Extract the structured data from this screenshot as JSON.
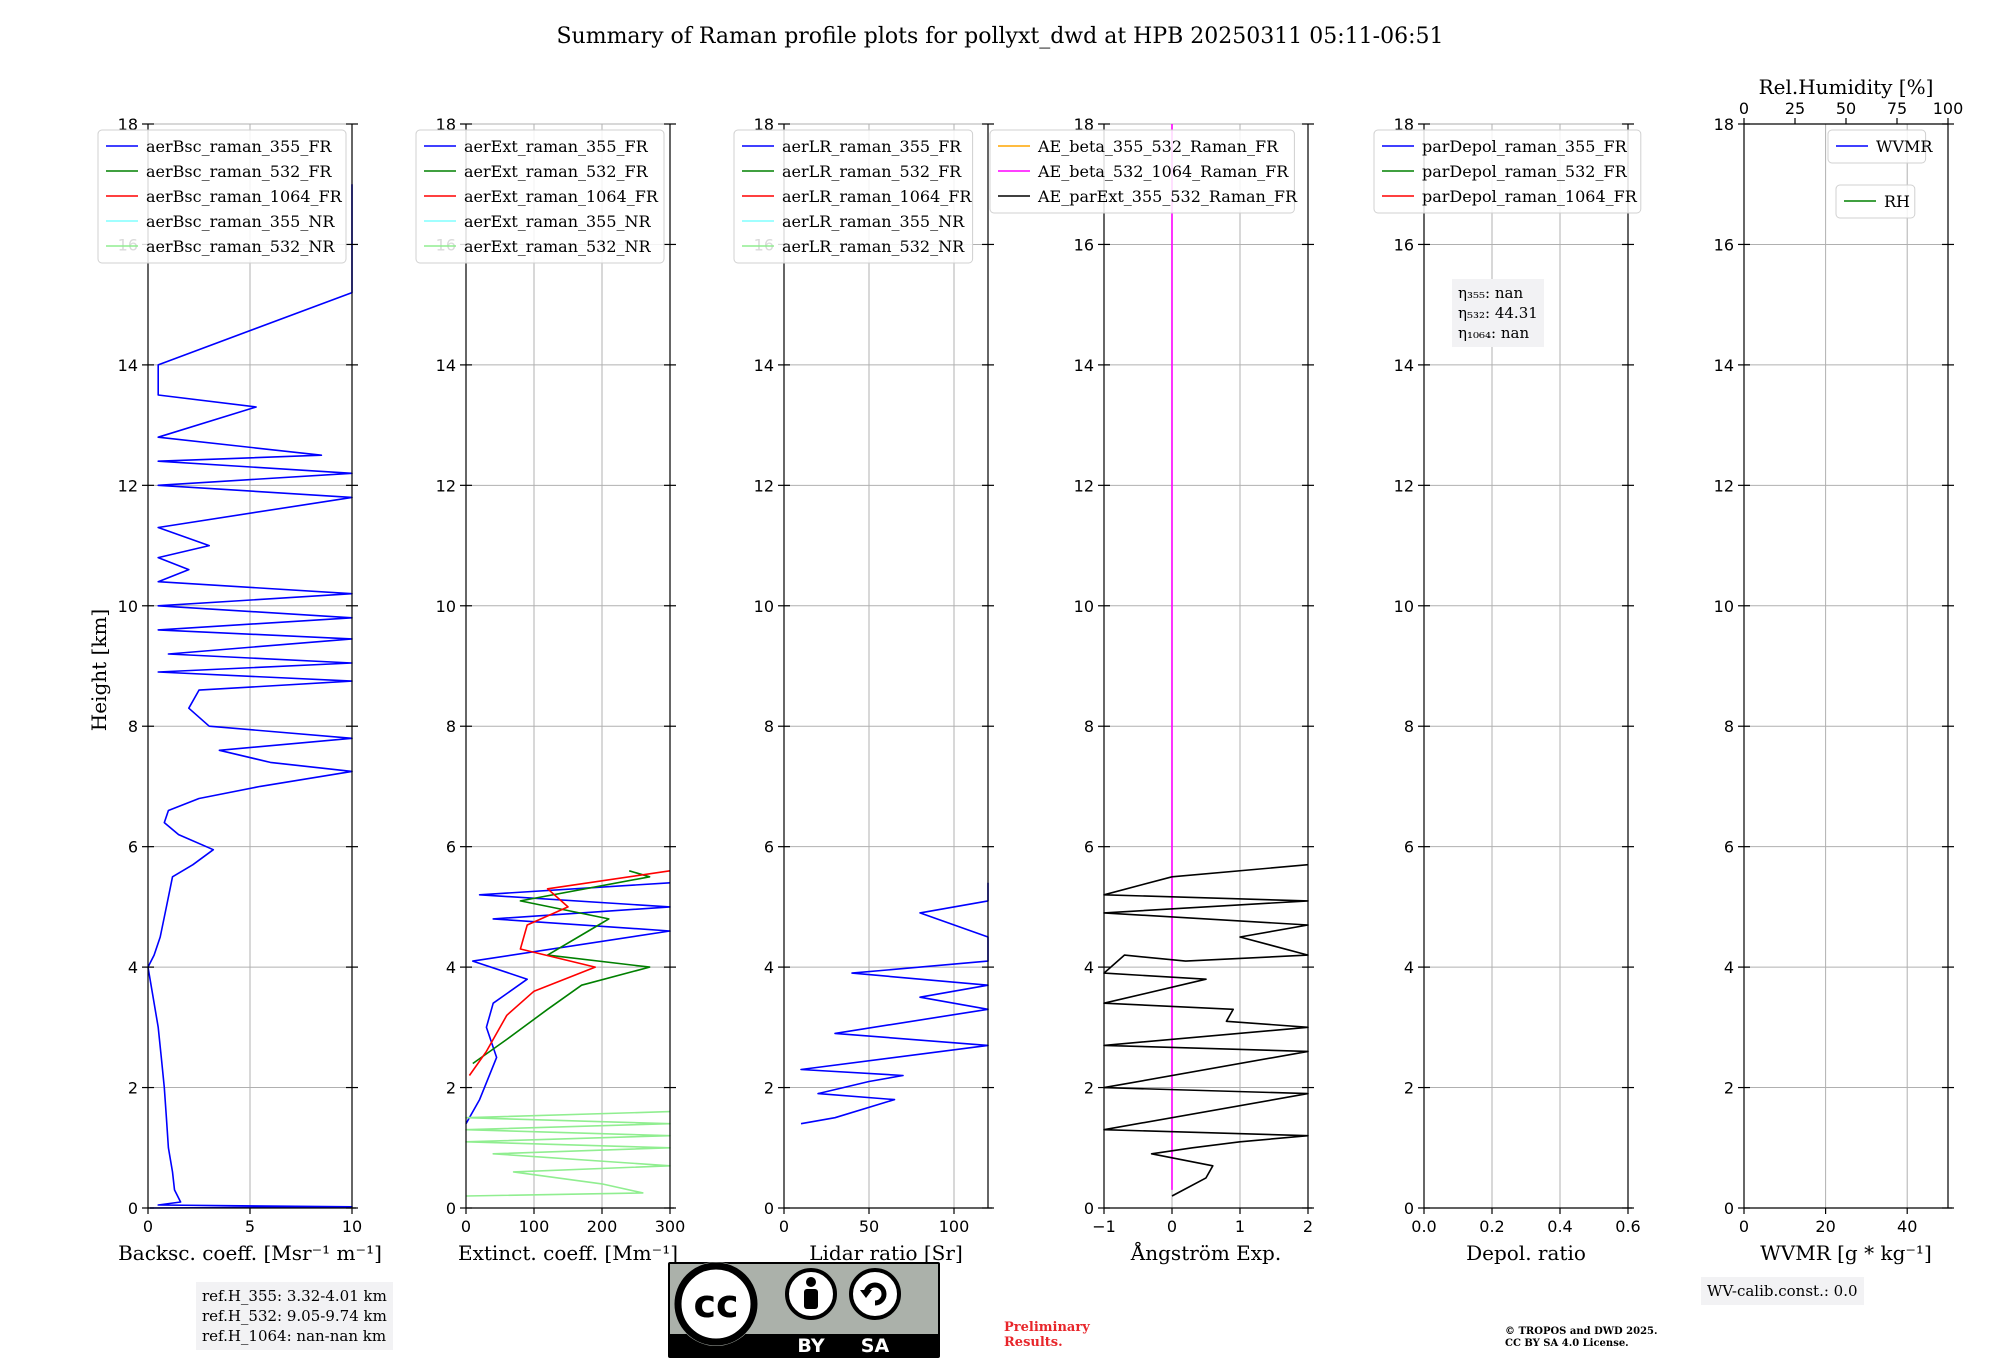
{
  "title": "Summary of Raman profile plots for pollyxt_dwd at HPB 20250311 05:11-06:51",
  "ylabel": "Height [km]",
  "y_ticks": [
    "0",
    "2",
    "4",
    "6",
    "8",
    "10",
    "12",
    "14",
    "16",
    "18"
  ],
  "ylim": [
    0,
    18
  ],
  "panels": [
    {
      "xlabel": "Backsc. coeff. [Msr⁻¹ m⁻¹]",
      "xlim": [
        0,
        10
      ],
      "x_ticks": [
        0,
        5,
        10
      ],
      "x_tick_labels": [
        "0",
        "5",
        "10"
      ],
      "legend": [
        {
          "label": "aerBsc_raman_355_FR",
          "color": "#0000ff"
        },
        {
          "label": "aerBsc_raman_532_FR",
          "color": "#008000"
        },
        {
          "label": "aerBsc_raman_1064_FR",
          "color": "#ff0000"
        },
        {
          "label": "aerBsc_raman_355_NR",
          "color": "#80ffff"
        },
        {
          "label": "aerBsc_raman_532_NR",
          "color": "#90ee90"
        }
      ]
    },
    {
      "xlabel": "Extinct. coeff. [Mm⁻¹]",
      "xlim": [
        0,
        300
      ],
      "x_ticks": [
        0,
        100,
        200,
        300
      ],
      "x_tick_labels": [
        "0",
        "100",
        "200",
        "300"
      ],
      "legend": [
        {
          "label": "aerExt_raman_355_FR",
          "color": "#0000ff"
        },
        {
          "label": "aerExt_raman_532_FR",
          "color": "#008000"
        },
        {
          "label": "aerExt_raman_1064_FR",
          "color": "#ff0000"
        },
        {
          "label": "aerExt_raman_355_NR",
          "color": "#80ffff"
        },
        {
          "label": "aerExt_raman_532_NR",
          "color": "#90ee90"
        }
      ]
    },
    {
      "xlabel": "Lidar ratio [Sr]",
      "xlim": [
        0,
        120
      ],
      "x_ticks": [
        0,
        50,
        100
      ],
      "x_tick_labels": [
        "0",
        "50",
        "100"
      ],
      "legend": [
        {
          "label": "aerLR_raman_355_FR",
          "color": "#0000ff"
        },
        {
          "label": "aerLR_raman_532_FR",
          "color": "#008000"
        },
        {
          "label": "aerLR_raman_1064_FR",
          "color": "#ff0000"
        },
        {
          "label": "aerLR_raman_355_NR",
          "color": "#80ffff"
        },
        {
          "label": "aerLR_raman_532_NR",
          "color": "#90ee90"
        }
      ]
    },
    {
      "xlabel": "Ångström Exp.",
      "xlim": [
        -1,
        2
      ],
      "x_ticks": [
        -1,
        0,
        1,
        2
      ],
      "x_tick_labels": [
        "−1",
        "0",
        "1",
        "2"
      ],
      "legend": [
        {
          "label": "AE_beta_355_532_Raman_FR",
          "color": "#ffa500"
        },
        {
          "label": "AE_beta_532_1064_Raman_FR",
          "color": "#ff00ff"
        },
        {
          "label": "AE_parExt_355_532_Raman_FR",
          "color": "#000000"
        }
      ]
    },
    {
      "xlabel": "Depol. ratio",
      "xlim": [
        0,
        0.6
      ],
      "x_ticks": [
        0,
        0.2,
        0.4,
        0.6
      ],
      "x_tick_labels": [
        "0.0",
        "0.2",
        "0.4",
        "0.6"
      ],
      "legend": [
        {
          "label": "parDepol_raman_355_FR",
          "color": "#0000ff"
        },
        {
          "label": "parDepol_raman_532_FR",
          "color": "#008000"
        },
        {
          "label": "parDepol_raman_1064_FR",
          "color": "#ff0000"
        }
      ]
    },
    {
      "xlabel": "WVMR [g * kg⁻¹]",
      "xlim": [
        0,
        50
      ],
      "x_ticks": [
        0,
        20,
        40
      ],
      "x_tick_labels": [
        "0",
        "20",
        "40"
      ],
      "top_axis_label": "Rel.Humidity [%]",
      "top_xlim": [
        0,
        100
      ],
      "top_ticks": [
        0,
        25,
        50,
        75,
        100
      ],
      "top_tick_labels": [
        "0",
        "25",
        "50",
        "75",
        "100"
      ],
      "legend": [
        {
          "label": "WVMR",
          "color": "#0000ff"
        }
      ],
      "legend2": [
        {
          "label": "RH",
          "color": "#008000"
        }
      ]
    }
  ],
  "depol_box": {
    "eta355": "η₃₅₅: nan",
    "eta532": "η₅₃₂: 44.31",
    "eta1064": "η₁₀₆₄: nan"
  },
  "ref_box": {
    "line1": "ref.H_355: 3.32-4.01 km",
    "line2": "ref.H_532: 9.05-9.74 km",
    "line3": "ref.H_1064: nan-nan km"
  },
  "wv_box": "WV-calib.const.: 0.0",
  "cc_badge": {
    "cc": "cc",
    "by": "BY",
    "sa": "SA"
  },
  "preliminary": {
    "line1": "Preliminary",
    "line2": "Results."
  },
  "copyright": {
    "line1": "© TROPOS and DWD 2025.",
    "line2": "CC BY SA 4.0 License."
  },
  "chart_data": [
    {
      "type": "line",
      "name": "backscatter",
      "series": [
        {
          "name": "aerBsc_raman_355_FR",
          "points": [
            [
              0.1,
              0.0
            ],
            [
              10.0,
              0.02
            ],
            [
              0.5,
              0.05
            ],
            [
              1.6,
              0.1
            ],
            [
              1.3,
              0.3
            ],
            [
              1.2,
              0.6
            ],
            [
              1.0,
              1.0
            ],
            [
              0.9,
              1.5
            ],
            [
              0.8,
              2.0
            ],
            [
              0.65,
              2.5
            ],
            [
              0.5,
              3.0
            ],
            [
              0.2,
              3.6
            ],
            [
              0.0,
              4.0
            ],
            [
              0.3,
              4.2
            ],
            [
              0.6,
              4.5
            ],
            [
              0.9,
              5.0
            ],
            [
              1.2,
              5.5
            ],
            [
              2.2,
              5.7
            ],
            [
              3.2,
              5.95
            ],
            [
              1.5,
              6.2
            ],
            [
              0.8,
              6.4
            ],
            [
              1.0,
              6.6
            ],
            [
              2.5,
              6.8
            ],
            [
              5.5,
              7.0
            ],
            [
              10,
              7.25
            ],
            [
              6.0,
              7.4
            ],
            [
              3.5,
              7.6
            ],
            [
              10,
              7.8
            ],
            [
              3.0,
              8.0
            ],
            [
              2.0,
              8.3
            ],
            [
              2.5,
              8.6
            ],
            [
              10,
              8.75
            ],
            [
              0.5,
              8.9
            ],
            [
              10,
              9.05
            ],
            [
              1.0,
              9.2
            ],
            [
              10,
              9.45
            ],
            [
              0.5,
              9.6
            ],
            [
              10,
              9.8
            ],
            [
              0.5,
              10.0
            ],
            [
              10,
              10.2
            ],
            [
              0.5,
              10.4
            ],
            [
              2.0,
              10.6
            ],
            [
              0.5,
              10.8
            ],
            [
              3.0,
              11.0
            ],
            [
              0.5,
              11.3
            ],
            [
              10,
              11.8
            ],
            [
              0.5,
              12.0
            ],
            [
              10,
              12.2
            ],
            [
              0.5,
              12.4
            ],
            [
              8.5,
              12.5
            ],
            [
              0.5,
              12.8
            ],
            [
              5.3,
              13.3
            ],
            [
              0.5,
              13.5
            ],
            [
              0.5,
              14.0
            ],
            [
              10,
              15.2
            ],
            [
              10,
              16.0
            ],
            [
              10,
              17.0
            ]
          ]
        }
      ]
    },
    {
      "type": "line",
      "name": "extinction",
      "series": [
        {
          "name": "aerExt_raman_355_FR",
          "points": [
            [
              0,
              1.4
            ],
            [
              20,
              1.8
            ],
            [
              45,
              2.5
            ],
            [
              30,
              3.0
            ],
            [
              40,
              3.4
            ],
            [
              90,
              3.8
            ],
            [
              10,
              4.1
            ],
            [
              300,
              4.6
            ],
            [
              40,
              4.8
            ],
            [
              300,
              5.0
            ],
            [
              20,
              5.2
            ],
            [
              300,
              5.4
            ]
          ]
        },
        {
          "name": "aerExt_raman_532_FR",
          "points": [
            [
              10,
              2.4
            ],
            [
              60,
              2.8
            ],
            [
              120,
              3.3
            ],
            [
              170,
              3.7
            ],
            [
              270,
              4.0
            ],
            [
              120,
              4.2
            ],
            [
              180,
              4.6
            ],
            [
              210,
              4.8
            ],
            [
              80,
              5.1
            ],
            [
              270,
              5.5
            ],
            [
              240,
              5.6
            ]
          ]
        },
        {
          "name": "aerExt_raman_1064_FR",
          "points": [
            [
              5,
              2.2
            ],
            [
              30,
              2.6
            ],
            [
              60,
              3.2
            ],
            [
              100,
              3.6
            ],
            [
              190,
              4.0
            ],
            [
              80,
              4.3
            ],
            [
              90,
              4.7
            ],
            [
              150,
              5.0
            ],
            [
              120,
              5.3
            ],
            [
              300,
              5.6
            ]
          ]
        },
        {
          "name": "aerExt_raman_532_NR",
          "points": [
            [
              0,
              0.2
            ],
            [
              260,
              0.25
            ],
            [
              200,
              0.4
            ],
            [
              70,
              0.6
            ],
            [
              300,
              0.7
            ],
            [
              40,
              0.9
            ],
            [
              300,
              1.0
            ],
            [
              0,
              1.1
            ],
            [
              300,
              1.2
            ],
            [
              0,
              1.3
            ],
            [
              300,
              1.4
            ],
            [
              0,
              1.5
            ],
            [
              300,
              1.6
            ]
          ]
        }
      ]
    },
    {
      "type": "line",
      "name": "lidar_ratio",
      "series": [
        {
          "name": "aerLR_raman_355_FR",
          "points": [
            [
              10,
              1.4
            ],
            [
              30,
              1.5
            ],
            [
              65,
              1.8
            ],
            [
              20,
              1.9
            ],
            [
              50,
              2.1
            ],
            [
              70,
              2.2
            ],
            [
              10,
              2.3
            ],
            [
              120,
              2.7
            ],
            [
              30,
              2.9
            ],
            [
              120,
              3.3
            ],
            [
              80,
              3.5
            ],
            [
              120,
              3.7
            ],
            [
              40,
              3.9
            ],
            [
              120,
              4.1
            ],
            [
              120,
              4.5
            ],
            [
              80,
              4.9
            ],
            [
              120,
              5.1
            ],
            [
              120,
              5.3
            ],
            [
              120,
              5.4
            ]
          ]
        }
      ]
    },
    {
      "type": "line",
      "name": "angstrom",
      "series": [
        {
          "name": "AE_beta_532_1064_Raman_FR",
          "points": [
            [
              0,
              0.3
            ],
            [
              0,
              18
            ]
          ]
        },
        {
          "name": "AE_parExt_355_532_Raman_FR",
          "points": [
            [
              0,
              0.2
            ],
            [
              0.5,
              0.5
            ],
            [
              0.6,
              0.7
            ],
            [
              -0.3,
              0.9
            ],
            [
              0.3,
              1.0
            ],
            [
              1.0,
              1.1
            ],
            [
              2.0,
              1.2
            ],
            [
              -1.0,
              1.3
            ],
            [
              2.0,
              1.9
            ],
            [
              -1.0,
              2.0
            ],
            [
              2.0,
              2.6
            ],
            [
              -1.0,
              2.7
            ],
            [
              2.0,
              3.0
            ],
            [
              0.8,
              3.1
            ],
            [
              0.9,
              3.3
            ],
            [
              -1.0,
              3.4
            ],
            [
              0.5,
              3.8
            ],
            [
              -1.0,
              3.9
            ],
            [
              -0.7,
              4.2
            ],
            [
              0.2,
              4.1
            ],
            [
              2.0,
              4.2
            ],
            [
              1.0,
              4.5
            ],
            [
              2.0,
              4.7
            ],
            [
              -1.0,
              4.9
            ],
            [
              2.0,
              5.1
            ],
            [
              -1.0,
              5.2
            ],
            [
              0,
              5.5
            ],
            [
              2.0,
              5.7
            ]
          ]
        }
      ]
    },
    {
      "type": "line",
      "name": "depol",
      "series": []
    },
    {
      "type": "line",
      "name": "wvmr",
      "series": []
    }
  ]
}
